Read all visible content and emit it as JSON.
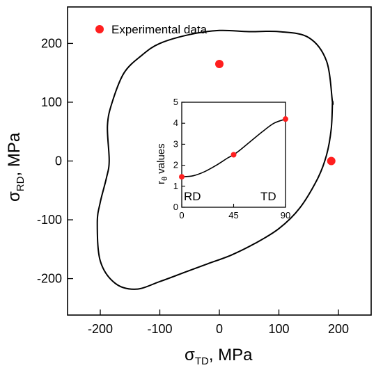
{
  "chart_data": [
    {
      "type": "line",
      "xlabel_main": "σ",
      "xlabel_sub": "TD",
      "xlabel_tail": ", MPa",
      "ylabel_main": "σ",
      "ylabel_sub": "RD",
      "ylabel_tail": ", MPa",
      "xlim": [
        -255,
        255
      ],
      "ylim": [
        -262,
        262
      ],
      "xticks": [
        -200,
        -100,
        0,
        100,
        200
      ],
      "yticks": [
        -200,
        -100,
        0,
        100,
        200
      ],
      "xtick_labels": [
        "-200",
        "-100",
        "0",
        "100",
        "200"
      ],
      "ytick_labels": [
        "-200",
        "-100",
        "0",
        "100",
        "200"
      ],
      "grid": false,
      "legend": {
        "placement": "top-left",
        "label": "Experimental data"
      },
      "series": [
        {
          "kind": "yield-locus",
          "x": [
            190,
            188,
            180,
            165,
            135,
            100,
            60,
            20,
            -20,
            -60,
            -100,
            -140,
            -175,
            -200,
            -205,
            -200,
            -190,
            -185,
            -188,
            -180,
            -160,
            -130,
            -100,
            -50,
            0,
            50,
            100,
            150,
            180,
            190
          ],
          "y": [
            100,
            55,
            10,
            -30,
            -80,
            -115,
            -140,
            -160,
            -175,
            -190,
            -205,
            -218,
            -208,
            -170,
            -105,
            -70,
            -30,
            0,
            60,
            100,
            150,
            180,
            200,
            215,
            222,
            220,
            220,
            210,
            170,
            100
          ]
        },
        {
          "kind": "experimental",
          "name": "Experimental data",
          "x": [
            0,
            188
          ],
          "y": [
            165,
            0
          ]
        }
      ],
      "colors": {
        "line": "#000000",
        "points": "#ff1f1f"
      }
    },
    {
      "type": "line",
      "ylabel_main": "r",
      "ylabel_sub": "θ",
      "ylabel_tail": " values",
      "xlim": [
        0,
        90
      ],
      "ylim": [
        0,
        5
      ],
      "xticks": [
        0,
        45,
        90
      ],
      "yticks": [
        0,
        1,
        2,
        3,
        4,
        5
      ],
      "xtick_labels": [
        "0",
        "45",
        "90"
      ],
      "ytick_labels": [
        "0",
        "1",
        "2",
        "3",
        "4",
        "5"
      ],
      "corner_labels": {
        "left": "RD",
        "right": "TD"
      },
      "series": [
        {
          "kind": "fit",
          "x": [
            0,
            10,
            20,
            30,
            40,
            45,
            50,
            60,
            70,
            80,
            90
          ],
          "y": [
            1.45,
            1.5,
            1.7,
            2.0,
            2.35,
            2.5,
            2.7,
            3.15,
            3.6,
            4.0,
            4.2
          ]
        },
        {
          "kind": "experimental",
          "x": [
            0,
            45,
            90
          ],
          "y": [
            1.45,
            2.5,
            4.2
          ]
        }
      ]
    }
  ]
}
